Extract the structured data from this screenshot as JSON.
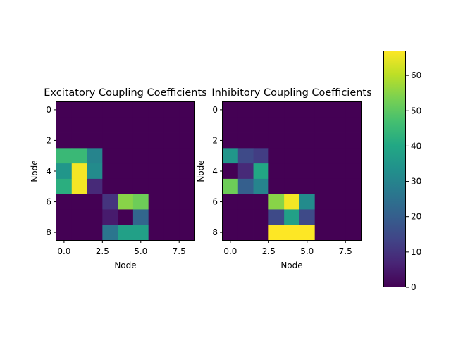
{
  "chart_data": [
    {
      "type": "heatmap",
      "title": "Excitatory Coupling Coefficients",
      "xlabel": "Node",
      "ylabel": "Node",
      "x_ticks": [
        "0.0",
        "2.5",
        "5.0",
        "7.5"
      ],
      "y_ticks": [
        "0",
        "2",
        "4",
        "6",
        "8"
      ],
      "values": [
        [
          0,
          0,
          0,
          0,
          0,
          0,
          0,
          0,
          0
        ],
        [
          0,
          0,
          0,
          0,
          0,
          0,
          0,
          0,
          0
        ],
        [
          0,
          0,
          0,
          0,
          0,
          0,
          0,
          0,
          0
        ],
        [
          45,
          45,
          30,
          0,
          0,
          0,
          0,
          0,
          0
        ],
        [
          35,
          66,
          32,
          0,
          0,
          0,
          0,
          0,
          0
        ],
        [
          42,
          66,
          8,
          0,
          0,
          0,
          0,
          0,
          0
        ],
        [
          0,
          0,
          0,
          10,
          55,
          52,
          0,
          0,
          0
        ],
        [
          0,
          0,
          0,
          5,
          0,
          22,
          0,
          0,
          0
        ],
        [
          0,
          0,
          0,
          26,
          38,
          38,
          0,
          0,
          0
        ]
      ]
    },
    {
      "type": "heatmap",
      "title": "Inhibitory Coupling Coefficients",
      "xlabel": "Node",
      "ylabel": "Node",
      "x_ticks": [
        "0.0",
        "2.5",
        "5.0",
        "7.5"
      ],
      "y_ticks": [
        "0",
        "2",
        "4",
        "6",
        "8"
      ],
      "values": [
        [
          0,
          0,
          0,
          0,
          0,
          0,
          0,
          0,
          0
        ],
        [
          0,
          0,
          0,
          0,
          0,
          0,
          0,
          0,
          0
        ],
        [
          0,
          0,
          0,
          0,
          0,
          0,
          0,
          0,
          0
        ],
        [
          35,
          15,
          12,
          0,
          0,
          0,
          0,
          0,
          0
        ],
        [
          0,
          8,
          40,
          0,
          0,
          0,
          0,
          0,
          0
        ],
        [
          52,
          20,
          30,
          0,
          0,
          0,
          0,
          0,
          0
        ],
        [
          0,
          0,
          0,
          55,
          66,
          32,
          0,
          0,
          0
        ],
        [
          0,
          0,
          0,
          15,
          38,
          15,
          0,
          0,
          0
        ],
        [
          0,
          0,
          0,
          67,
          67,
          67,
          0,
          0,
          0
        ]
      ]
    }
  ],
  "colorbar": {
    "vmin": 0,
    "vmax": 67,
    "ticks": [
      "0",
      "10",
      "20",
      "30",
      "40",
      "50",
      "60"
    ],
    "colormap": "viridis"
  }
}
